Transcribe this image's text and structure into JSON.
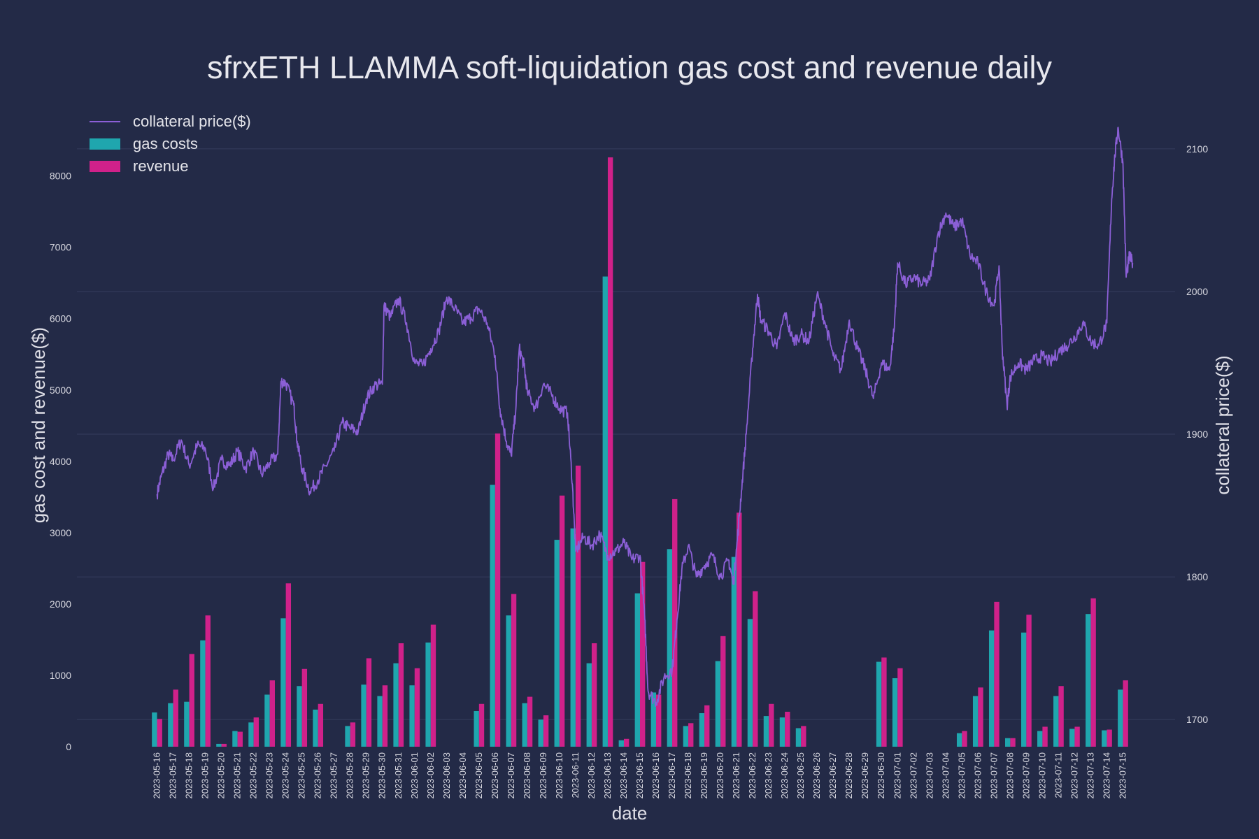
{
  "chart_data": {
    "type": "bar",
    "title": "sfrxETH LLAMMA soft-liquidation gas cost and revenue daily",
    "xlabel": "date",
    "ylabel": "gas cost and revenue($)",
    "y2label": "collateral price($)",
    "ylim": [
      0,
      8800
    ],
    "y2lim": [
      1681,
      2121
    ],
    "yticks": [
      0,
      1000,
      2000,
      3000,
      4000,
      5000,
      6000,
      7000,
      8000
    ],
    "y2ticks": [
      1700,
      1800,
      1900,
      2000,
      2100
    ],
    "legend_position": "top-left",
    "grid": true,
    "categories": [
      "2023-05-16",
      "2023-05-17",
      "2023-05-18",
      "2023-05-19",
      "2023-05-20",
      "2023-05-21",
      "2023-05-22",
      "2023-05-23",
      "2023-05-24",
      "2023-05-25",
      "2023-05-26",
      "2023-05-27",
      "2023-05-28",
      "2023-05-29",
      "2023-05-30",
      "2023-05-31",
      "2023-06-01",
      "2023-06-02",
      "2023-06-03",
      "2023-06-04",
      "2023-06-05",
      "2023-06-06",
      "2023-06-07",
      "2023-06-08",
      "2023-06-09",
      "2023-06-10",
      "2023-06-11",
      "2023-06-12",
      "2023-06-13",
      "2023-06-14",
      "2023-06-15",
      "2023-06-16",
      "2023-06-17",
      "2023-06-18",
      "2023-06-19",
      "2023-06-20",
      "2023-06-21",
      "2023-06-22",
      "2023-06-23",
      "2023-06-24",
      "2023-06-25",
      "2023-06-26",
      "2023-06-27",
      "2023-06-28",
      "2023-06-29",
      "2023-06-30",
      "2023-07-01",
      "2023-07-02",
      "2023-07-03",
      "2023-07-04",
      "2023-07-05",
      "2023-07-06",
      "2023-07-07",
      "2023-07-08",
      "2023-07-09",
      "2023-07-10",
      "2023-07-11",
      "2023-07-12",
      "2023-07-13",
      "2023-07-14",
      "2023-07-15"
    ],
    "series": [
      {
        "name": "gas costs",
        "kind": "bar",
        "color": "#1fa6ae",
        "values": [
          480,
          610,
          630,
          1490,
          40,
          220,
          340,
          730,
          1800,
          850,
          520,
          0,
          290,
          870,
          710,
          1170,
          860,
          1460,
          0,
          0,
          500,
          3670,
          1840,
          610,
          380,
          2900,
          3060,
          1170,
          6590,
          90,
          2150,
          760,
          2770,
          290,
          470,
          1200,
          2660,
          1790,
          430,
          410,
          260,
          0,
          0,
          0,
          0,
          1190,
          960,
          0,
          0,
          0,
          190,
          710,
          1630,
          120,
          1600,
          220,
          710,
          250,
          1860,
          230,
          800
        ]
      },
      {
        "name": "revenue",
        "kind": "bar",
        "color": "#d0218a",
        "values": [
          390,
          800,
          1300,
          1840,
          40,
          210,
          410,
          930,
          2290,
          1090,
          600,
          0,
          340,
          1240,
          860,
          1450,
          1100,
          1710,
          0,
          0,
          600,
          4390,
          2140,
          700,
          440,
          3520,
          3940,
          1450,
          8260,
          110,
          2590,
          730,
          3470,
          330,
          580,
          1550,
          3280,
          2180,
          600,
          490,
          290,
          0,
          0,
          0,
          0,
          1250,
          1100,
          0,
          0,
          0,
          220,
          830,
          2030,
          120,
          1850,
          280,
          850,
          280,
          2080,
          240,
          930
        ]
      },
      {
        "name": "collateral price($)",
        "kind": "line",
        "color": "#8b5fd6",
        "anchors": [
          [
            "2023-05-16",
            1858
          ],
          [
            "2023-05-16.3",
            1872
          ],
          [
            "2023-05-16.7",
            1886
          ],
          [
            "2023-05-17",
            1882
          ],
          [
            "2023-05-17.5",
            1896
          ],
          [
            "2023-05-18",
            1878
          ],
          [
            "2023-05-18.5",
            1892
          ],
          [
            "2023-05-19",
            1890
          ],
          [
            "2023-05-19.5",
            1862
          ],
          [
            "2023-05-20",
            1882
          ],
          [
            "2023-05-20.5",
            1878
          ],
          [
            "2023-05-21",
            1888
          ],
          [
            "2023-05-21.5",
            1876
          ],
          [
            "2023-05-22",
            1888
          ],
          [
            "2023-05-22.5",
            1872
          ],
          [
            "2023-05-23",
            1880
          ],
          [
            "2023-05-23.5",
            1886
          ],
          [
            "2023-05-23.7",
            1937
          ],
          [
            "2023-05-24",
            1936
          ],
          [
            "2023-05-24.5",
            1920
          ],
          [
            "2023-05-24.7",
            1895
          ],
          [
            "2023-05-25",
            1876
          ],
          [
            "2023-05-25.5",
            1860
          ],
          [
            "2023-05-26",
            1868
          ],
          [
            "2023-05-26.5",
            1878
          ],
          [
            "2023-05-27",
            1888
          ],
          [
            "2023-05-27.5",
            1908
          ],
          [
            "2023-05-28",
            1904
          ],
          [
            "2023-05-28.5",
            1902
          ],
          [
            "2023-05-29",
            1925
          ],
          [
            "2023-05-29.5",
            1934
          ],
          [
            "2023-05-30",
            1935
          ],
          [
            "2023-05-30.1",
            1990
          ],
          [
            "2023-05-30.5",
            1982
          ],
          [
            "2023-05-31",
            1995
          ],
          [
            "2023-05-31.5",
            1978
          ],
          [
            "2023-06-01",
            1950
          ],
          [
            "2023-06-01.5",
            1948
          ],
          [
            "2023-06-02",
            1960
          ],
          [
            "2023-06-02.5",
            1972
          ],
          [
            "2023-06-03",
            1996
          ],
          [
            "2023-06-03.5",
            1988
          ],
          [
            "2023-06-04",
            1978
          ],
          [
            "2023-06-04.5",
            1982
          ],
          [
            "2023-06-05",
            1988
          ],
          [
            "2023-06-05.5",
            1978
          ],
          [
            "2023-06-06",
            1955
          ],
          [
            "2023-06-06.3",
            1918
          ],
          [
            "2023-06-06.7",
            1895
          ],
          [
            "2023-06-07",
            1885
          ],
          [
            "2023-06-07.3",
            1920
          ],
          [
            "2023-06-07.5",
            1960
          ],
          [
            "2023-06-07.8",
            1948
          ],
          [
            "2023-06-08",
            1930
          ],
          [
            "2023-06-08.5",
            1918
          ],
          [
            "2023-06-09",
            1935
          ],
          [
            "2023-06-09.5",
            1928
          ],
          [
            "2023-06-10",
            1918
          ],
          [
            "2023-06-10.5",
            1915
          ],
          [
            "2023-06-10.8",
            1865
          ],
          [
            "2023-06-11",
            1818
          ],
          [
            "2023-06-11.5",
            1828
          ],
          [
            "2023-06-12",
            1822
          ],
          [
            "2023-06-12.5",
            1830
          ],
          [
            "2023-06-13",
            1815
          ],
          [
            "2023-06-13.5",
            1818
          ],
          [
            "2023-06-14",
            1824
          ],
          [
            "2023-06-14.5",
            1812
          ],
          [
            "2023-06-15",
            1815
          ],
          [
            "2023-06-15.3",
            1770
          ],
          [
            "2023-06-15.5",
            1720
          ],
          [
            "2023-06-16",
            1712
          ],
          [
            "2023-06-16.5",
            1730
          ],
          [
            "2023-06-17",
            1735
          ],
          [
            "2023-06-17.3",
            1770
          ],
          [
            "2023-06-17.6",
            1805
          ],
          [
            "2023-06-18",
            1822
          ],
          [
            "2023-06-18.5",
            1800
          ],
          [
            "2023-06-19",
            1808
          ],
          [
            "2023-06-19.5",
            1815
          ],
          [
            "2023-06-20",
            1800
          ],
          [
            "2023-06-20.5",
            1812
          ],
          [
            "2023-06-20.8",
            1795
          ],
          [
            "2023-06-21",
            1820
          ],
          [
            "2023-06-21.3",
            1860
          ],
          [
            "2023-06-21.6",
            1900
          ],
          [
            "2023-06-22",
            1960
          ],
          [
            "2023-06-22.3",
            1998
          ],
          [
            "2023-06-22.5",
            1980
          ],
          [
            "2023-06-23",
            1972
          ],
          [
            "2023-06-23.5",
            1960
          ],
          [
            "2023-06-24",
            1985
          ],
          [
            "2023-06-24.5",
            1965
          ],
          [
            "2023-06-25",
            1970
          ],
          [
            "2023-06-25.5",
            1965
          ],
          [
            "2023-06-26",
            1998
          ],
          [
            "2023-06-26.5",
            1978
          ],
          [
            "2023-06-27",
            1955
          ],
          [
            "2023-06-27.5",
            1945
          ],
          [
            "2023-06-28",
            1980
          ],
          [
            "2023-06-28.5",
            1960
          ],
          [
            "2023-06-29",
            1945
          ],
          [
            "2023-06-29.5",
            1925
          ],
          [
            "2023-06-30",
            1950
          ],
          [
            "2023-06-30.5",
            1945
          ],
          [
            "2023-06-30.8",
            1975
          ],
          [
            "2023-07-01",
            2020
          ],
          [
            "2023-07-01.5",
            2005
          ],
          [
            "2023-07-02",
            2010
          ],
          [
            "2023-07-02.5",
            2005
          ],
          [
            "2023-07-03",
            2008
          ],
          [
            "2023-07-03.5",
            2040
          ],
          [
            "2023-07-04",
            2055
          ],
          [
            "2023-07-04.5",
            2045
          ],
          [
            "2023-07-05",
            2050
          ],
          [
            "2023-07-05.5",
            2025
          ],
          [
            "2023-07-06",
            2020
          ],
          [
            "2023-07-06.5",
            2000
          ],
          [
            "2023-07-07",
            1990
          ],
          [
            "2023-07-07.3",
            2018
          ],
          [
            "2023-07-07.5",
            1960
          ],
          [
            "2023-07-07.8",
            1920
          ],
          [
            "2023-07-08",
            1940
          ],
          [
            "2023-07-08.5",
            1950
          ],
          [
            "2023-07-09",
            1945
          ],
          [
            "2023-07-09.5",
            1952
          ],
          [
            "2023-07-10",
            1955
          ],
          [
            "2023-07-10.5",
            1950
          ],
          [
            "2023-07-11",
            1958
          ],
          [
            "2023-07-11.5",
            1962
          ],
          [
            "2023-07-12",
            1968
          ],
          [
            "2023-07-12.5",
            1978
          ],
          [
            "2023-07-13",
            1965
          ],
          [
            "2023-07-13.5",
            1962
          ],
          [
            "2023-07-14",
            1978
          ],
          [
            "2023-07-14.3",
            2065
          ],
          [
            "2023-07-14.5",
            2095
          ],
          [
            "2023-07-14.7",
            2115
          ],
          [
            "2023-07-15",
            2090
          ],
          [
            "2023-07-15.2",
            2010
          ],
          [
            "2023-07-15.4",
            2025
          ],
          [
            "2023-07-15.6",
            2020
          ]
        ]
      }
    ]
  }
}
